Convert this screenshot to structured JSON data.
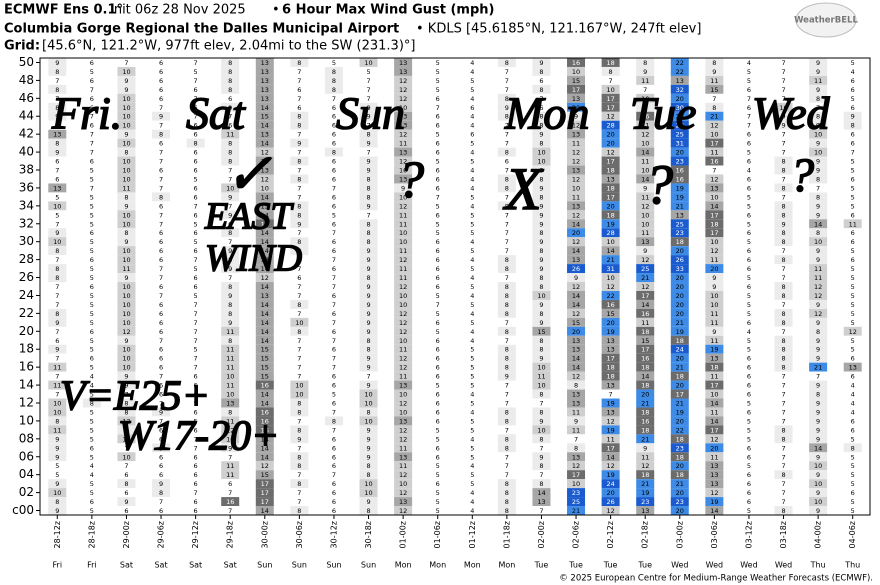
{
  "header": {
    "line1_a": "ECMWF Ens 0.1°",
    "line1_b": "Init 06z 28 Nov 2025",
    "line1_sep": "•",
    "line1_c": "6 Hour Max Wind Gust (mph)",
    "line2_a": "Columbia Gorge Regional the Dalles Municipal Airport",
    "line2_b": "• KDLS [45.6185°N, 121.167°W, 247ft elev]",
    "line3_a": "Grid:",
    "line3_b": "[45.6°N, 121.2°W, 977ft elev, 2.04mi to the SW (231.3)°]",
    "logo": "WeatherBELL"
  },
  "footer": "© 2025 European Centre for Medium-Range Weather Forecasts (ECMWF).",
  "annotations": [
    "Fri.",
    "Sat",
    "Sun",
    "Mon",
    "Tue",
    "Wed",
    "✓",
    "?",
    "X",
    "?",
    "?",
    "EAST",
    "WIND",
    "V=E25+",
    "W17-20+"
  ],
  "chart_data": {
    "type": "heatmap",
    "x": [
      "28-12z",
      "28-18z",
      "29-00z",
      "29-06z",
      "29-12z",
      "29-18z",
      "30-00z",
      "30-06z",
      "30-12z",
      "30-18z",
      "01-00z",
      "01-06z",
      "01-12z",
      "01-18z",
      "02-00z",
      "02-06z",
      "02-12z",
      "02-18z",
      "03-00z",
      "03-06z",
      "03-12z",
      "03-18z",
      "04-00z",
      "04-06z"
    ],
    "days": [
      "Fri",
      "Fri",
      "Sat",
      "Sat",
      "Sat",
      "Sat",
      "Sun",
      "Sun",
      "Sun",
      "Sun",
      "Mon",
      "Mon",
      "Mon",
      "Mon",
      "Tue",
      "Tue",
      "Tue",
      "Tue",
      "Wed",
      "Wed",
      "Wed",
      "Wed",
      "Thu",
      "Thu"
    ],
    "rows": [
      "50",
      null,
      "48",
      null,
      "46",
      null,
      "44",
      null,
      "42",
      null,
      "40",
      null,
      "38",
      null,
      "36",
      null,
      "34",
      null,
      "32",
      null,
      "30",
      null,
      "28",
      null,
      "26",
      null,
      "24",
      null,
      "22",
      null,
      "20",
      null,
      "18",
      null,
      "16",
      null,
      "14",
      null,
      "12",
      null,
      "10",
      null,
      "08",
      null,
      "06",
      null,
      "04",
      null,
      "02",
      null,
      "c00"
    ],
    "color_scale": [
      {
        "min": 0,
        "color": "#ffffff",
        "text": "#000000"
      },
      {
        "min": 8,
        "color": "#ebebeb",
        "text": "#000000"
      },
      {
        "min": 10,
        "color": "#cfcfcf",
        "text": "#000000"
      },
      {
        "min": 13,
        "color": "#a6a6a6",
        "text": "#000000"
      },
      {
        "min": 16,
        "color": "#6c6c6c",
        "text": "#ffffff"
      },
      {
        "min": 19,
        "color": "#3d8be6",
        "text": "#000000"
      },
      {
        "min": 23,
        "color": "#1a5ccf",
        "text": "#ffffff"
      }
    ],
    "values": [
      [
        9,
        6,
        7,
        6,
        7,
        8,
        13,
        8,
        5,
        10,
        13,
        5,
        4,
        8,
        9,
        16,
        18,
        8,
        22,
        8,
        4,
        7,
        9,
        5
      ],
      [
        8,
        5,
        10,
        6,
        5,
        8,
        13,
        7,
        8,
        5,
        13,
        5,
        4,
        7,
        8,
        10,
        8,
        9,
        22,
        9,
        5,
        7,
        9,
        4
      ],
      [
        7,
        6,
        9,
        6,
        7,
        8,
        13,
        7,
        8,
        7,
        12,
        5,
        5,
        7,
        6,
        15,
        7,
        11,
        13,
        11,
        5,
        7,
        11,
        6
      ],
      [
        8,
        7,
        9,
        6,
        6,
        8,
        13,
        6,
        8,
        7,
        12,
        5,
        5,
        7,
        8,
        17,
        10,
        7,
        32,
        15,
        6,
        7,
        9,
        6
      ],
      [
        7,
        6,
        10,
        6,
        7,
        6,
        13,
        7,
        7,
        7,
        12,
        6,
        4,
        8,
        7,
        13,
        17,
        10,
        20,
        7,
        7,
        7,
        8,
        5
      ],
      [
        8,
        6,
        10,
        7,
        6,
        9,
        14,
        6,
        6,
        9,
        10,
        7,
        6,
        9,
        6,
        20,
        17,
        8,
        30,
        8,
        6,
        10,
        7,
        6
      ],
      [
        9,
        7,
        10,
        9,
        7,
        7,
        15,
        8,
        6,
        9,
        13,
        6,
        4,
        8,
        8,
        9,
        12,
        16,
        20,
        21,
        7,
        9,
        8,
        9
      ],
      [
        7,
        6,
        10,
        7,
        6,
        6,
        14,
        8,
        6,
        7,
        13,
        6,
        4,
        7,
        8,
        12,
        28,
        11,
        28,
        12,
        7,
        9,
        9,
        8
      ],
      [
        13,
        7,
        9,
        8,
        6,
        11,
        13,
        7,
        6,
        8,
        12,
        5,
        6,
        7,
        9,
        13,
        20,
        12,
        25,
        10,
        6,
        7,
        10,
        6
      ],
      [
        8,
        7,
        10,
        6,
        8,
        8,
        14,
        9,
        6,
        9,
        11,
        6,
        5,
        7,
        8,
        11,
        20,
        10,
        31,
        17,
        6,
        7,
        9,
        6
      ],
      [
        9,
        7,
        8,
        7,
        6,
        8,
        12,
        7,
        8,
        7,
        13,
        6,
        4,
        8,
        10,
        12,
        12,
        14,
        20,
        11,
        5,
        7,
        10,
        7
      ],
      [
        6,
        6,
        10,
        7,
        6,
        8,
        13,
        8,
        6,
        9,
        12,
        5,
        5,
        6,
        10,
        12,
        17,
        11,
        23,
        16,
        6,
        8,
        9,
        5
      ],
      [
        7,
        5,
        10,
        6,
        6,
        7,
        13,
        7,
        6,
        9,
        10,
        6,
        4,
        7,
        8,
        13,
        18,
        10,
        16,
        7,
        4,
        8,
        9,
        5
      ],
      [
        6,
        5,
        10,
        7,
        5,
        7,
        12,
        8,
        6,
        8,
        13,
        6,
        4,
        8,
        8,
        12,
        13,
        14,
        16,
        12,
        6,
        7,
        8,
        6
      ],
      [
        13,
        7,
        11,
        7,
        6,
        10,
        10,
        7,
        7,
        8,
        9,
        6,
        4,
        8,
        9,
        10,
        18,
        9,
        19,
        13,
        6,
        8,
        7,
        5
      ],
      [
        5,
        5,
        8,
        8,
        6,
        9,
        14,
        7,
        6,
        8,
        10,
        7,
        5,
        7,
        8,
        11,
        17,
        11,
        19,
        10,
        5,
        7,
        8,
        5
      ],
      [
        10,
        5,
        9,
        6,
        7,
        7,
        13,
        8,
        6,
        9,
        12,
        5,
        4,
        8,
        9,
        13,
        20,
        12,
        21,
        14,
        5,
        8,
        9,
        5
      ],
      [
        5,
        5,
        10,
        7,
        6,
        9,
        14,
        8,
        5,
        7,
        11,
        6,
        5,
        7,
        9,
        12,
        18,
        10,
        13,
        17,
        6,
        8,
        9,
        6
      ],
      [
        7,
        5,
        10,
        7,
        5,
        6,
        17,
        9,
        6,
        8,
        11,
        5,
        5,
        7,
        9,
        14,
        19,
        10,
        25,
        18,
        5,
        9,
        14,
        11
      ],
      [
        9,
        6,
        8,
        6,
        6,
        8,
        14,
        7,
        7,
        8,
        10,
        5,
        5,
        7,
        8,
        20,
        28,
        11,
        23,
        17,
        6,
        8,
        8,
        6
      ],
      [
        10,
        5,
        9,
        6,
        5,
        7,
        14,
        8,
        6,
        8,
        10,
        6,
        4,
        7,
        9,
        12,
        10,
        13,
        18,
        10,
        5,
        8,
        10,
        6
      ],
      [
        8,
        5,
        10,
        6,
        6,
        9,
        14,
        8,
        6,
        9,
        11,
        6,
        5,
        7,
        8,
        14,
        14,
        9,
        20,
        12,
        6,
        7,
        9,
        5
      ],
      [
        7,
        6,
        10,
        6,
        7,
        8,
        13,
        7,
        7,
        9,
        12,
        6,
        4,
        8,
        9,
        13,
        21,
        12,
        26,
        11,
        6,
        8,
        9,
        6
      ],
      [
        8,
        5,
        11,
        7,
        5,
        9,
        14,
        7,
        6,
        9,
        11,
        6,
        5,
        8,
        9,
        26,
        31,
        25,
        33,
        20,
        6,
        7,
        11,
        5
      ],
      [
        8,
        5,
        9,
        7,
        6,
        7,
        12,
        6,
        7,
        8,
        11,
        6,
        4,
        7,
        8,
        9,
        10,
        21,
        20,
        9,
        5,
        7,
        11,
        5
      ],
      [
        7,
        6,
        10,
        6,
        6,
        8,
        14,
        7,
        7,
        9,
        12,
        6,
        5,
        8,
        8,
        12,
        12,
        12,
        20,
        9,
        6,
        8,
        12,
        5
      ],
      [
        7,
        5,
        10,
        7,
        5,
        9,
        13,
        7,
        6,
        9,
        10,
        5,
        4,
        8,
        10,
        14,
        22,
        17,
        20,
        10,
        5,
        8,
        12,
        5
      ],
      [
        7,
        5,
        10,
        6,
        7,
        8,
        14,
        8,
        7,
        9,
        10,
        7,
        5,
        8,
        9,
        14,
        16,
        14,
        20,
        10,
        5,
        7,
        9,
        5
      ],
      [
        8,
        5,
        10,
        6,
        7,
        8,
        14,
        7,
        6,
        9,
        12,
        5,
        4,
        8,
        8,
        12,
        15,
        16,
        20,
        11,
        5,
        8,
        12,
        5
      ],
      [
        9,
        5,
        10,
        6,
        7,
        9,
        14,
        10,
        7,
        9,
        12,
        6,
        5,
        7,
        9,
        15,
        20,
        11,
        21,
        11,
        6,
        8,
        9,
        5
      ],
      [
        7,
        6,
        12,
        6,
        7,
        11,
        14,
        8,
        6,
        9,
        12,
        5,
        4,
        8,
        15,
        20,
        19,
        18,
        19,
        9,
        4,
        7,
        8,
        12
      ],
      [
        6,
        5,
        9,
        7,
        7,
        8,
        14,
        7,
        7,
        8,
        10,
        6,
        4,
        7,
        8,
        13,
        13,
        15,
        18,
        11,
        5,
        8,
        9,
        5
      ],
      [
        9,
        5,
        10,
        6,
        5,
        11,
        15,
        7,
        6,
        8,
        11,
        6,
        5,
        8,
        8,
        13,
        13,
        17,
        24,
        19,
        5,
        8,
        9,
        5
      ],
      [
        7,
        6,
        10,
        6,
        7,
        11,
        15,
        7,
        7,
        9,
        12,
        6,
        5,
        8,
        9,
        14,
        17,
        16,
        20,
        13,
        6,
        8,
        9,
        6
      ],
      [
        11,
        5,
        10,
        6,
        7,
        11,
        15,
        7,
        7,
        9,
        12,
        6,
        5,
        8,
        10,
        14,
        18,
        18,
        21,
        18,
        6,
        8,
        21,
        13
      ],
      [
        7,
        4,
        9,
        7,
        6,
        10,
        15,
        7,
        6,
        7,
        11,
        6,
        5,
        9,
        11,
        12,
        18,
        14,
        18,
        11,
        6,
        7,
        7,
        6
      ],
      [
        11,
        4,
        9,
        6,
        6,
        11,
        16,
        10,
        6,
        9,
        13,
        5,
        5,
        7,
        10,
        8,
        13,
        18,
        20,
        17,
        6,
        7,
        9,
        4
      ],
      [
        7,
        5,
        7,
        6,
        6,
        10,
        14,
        10,
        5,
        10,
        10,
        6,
        4,
        7,
        8,
        13,
        7,
        20,
        17,
        10,
        6,
        7,
        8,
        4
      ],
      [
        10,
        8,
        8,
        7,
        5,
        13,
        14,
        8,
        6,
        10,
        12,
        6,
        5,
        7,
        7,
        13,
        19,
        21,
        21,
        14,
        5,
        7,
        9,
        4
      ],
      [
        10,
        5,
        8,
        9,
        6,
        8,
        16,
        8,
        7,
        8,
        10,
        6,
        4,
        8,
        8,
        11,
        13,
        18,
        19,
        11,
        6,
        7,
        9,
        4
      ],
      [
        8,
        5,
        12,
        7,
        5,
        11,
        16,
        7,
        8,
        10,
        13,
        6,
        5,
        8,
        9,
        9,
        12,
        16,
        20,
        14,
        5,
        7,
        9,
        6
      ],
      [
        11,
        5,
        8,
        6,
        6,
        12,
        16,
        8,
        7,
        9,
        12,
        5,
        5,
        7,
        10,
        11,
        19,
        18,
        22,
        17,
        5,
        8,
        9,
        6
      ],
      [
        9,
        5,
        12,
        6,
        7,
        10,
        14,
        9,
        6,
        9,
        12,
        5,
        4,
        8,
        8,
        7,
        11,
        21,
        18,
        12,
        5,
        8,
        9,
        5
      ],
      [
        9,
        6,
        7,
        9,
        7,
        9,
        14,
        7,
        6,
        9,
        11,
        6,
        5,
        8,
        7,
        8,
        17,
        9,
        23,
        20,
        6,
        7,
        14,
        8
      ],
      [
        9,
        5,
        10,
        6,
        6,
        7,
        14,
        8,
        6,
        9,
        13,
        6,
        5,
        7,
        9,
        13,
        14,
        11,
        18,
        11,
        6,
        7,
        9,
        5
      ],
      [
        5,
        4,
        7,
        6,
        6,
        11,
        12,
        8,
        6,
        8,
        11,
        5,
        4,
        7,
        8,
        12,
        12,
        12,
        20,
        13,
        5,
        7,
        10,
        5
      ],
      [
        5,
        4,
        6,
        6,
        6,
        11,
        15,
        7,
        7,
        8,
        12,
        5,
        5,
        7,
        7,
        17,
        19,
        18,
        18,
        13,
        6,
        8,
        9,
        5
      ],
      [
        9,
        5,
        8,
        9,
        6,
        6,
        17,
        8,
        6,
        10,
        10,
        6,
        5,
        8,
        8,
        10,
        24,
        21,
        21,
        13,
        6,
        7,
        10,
        5
      ],
      [
        10,
        5,
        6,
        8,
        7,
        7,
        17,
        7,
        6,
        10,
        12,
        5,
        4,
        8,
        14,
        23,
        20,
        19,
        20,
        12,
        6,
        7,
        9,
        6
      ],
      [
        8,
        6,
        9,
        7,
        6,
        16,
        17,
        7,
        6,
        9,
        13,
        5,
        4,
        8,
        13,
        25,
        26,
        23,
        23,
        19,
        6,
        7,
        10,
        5
      ],
      [
        9,
        5,
        6,
        6,
        6,
        7,
        14,
        8,
        6,
        8,
        12,
        5,
        4,
        8,
        7,
        21,
        12,
        13,
        20,
        14,
        5,
        8,
        9,
        5
      ]
    ]
  }
}
